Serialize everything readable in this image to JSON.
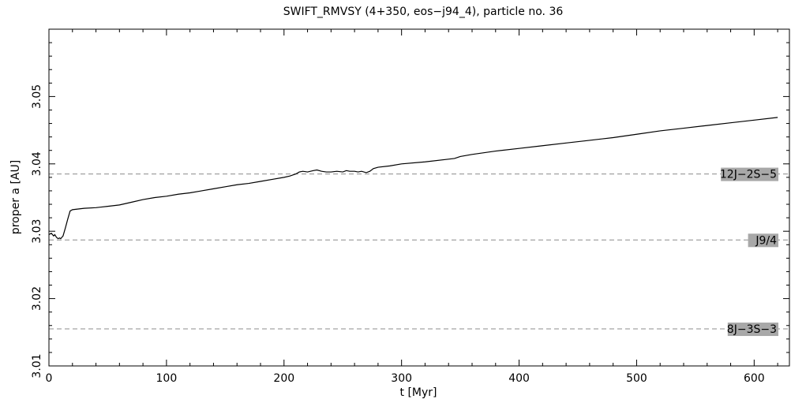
{
  "chart_data": {
    "type": "line",
    "title": "SWIFT_RMVSY (4+350, eos−j94_4), particle no. 36",
    "xlabel": "t [Myr]",
    "ylabel": "proper a [AU]",
    "xlim": [
      0,
      630
    ],
    "ylim": [
      3.01,
      3.06
    ],
    "xticks": [
      0,
      100,
      200,
      300,
      400,
      500,
      600
    ],
    "yticks": [
      3.01,
      3.02,
      3.03,
      3.04,
      3.05
    ],
    "xtick_labels": [
      "0",
      "100",
      "200",
      "300",
      "400",
      "500",
      "600"
    ],
    "ytick_labels": [
      "3.01",
      "3.02",
      "3.03",
      "3.04",
      "3.05"
    ],
    "grid": false,
    "resonances": [
      {
        "label": "12J−2S−5",
        "a": 3.0385
      },
      {
        "label": "J9/4",
        "a": 3.0287
      },
      {
        "label": "8J−3S−3",
        "a": 3.0155
      }
    ],
    "series": [
      {
        "x": [
          0,
          2,
          4,
          5,
          6,
          7,
          8,
          9,
          10,
          11,
          12,
          14,
          16,
          18,
          20,
          30,
          40,
          50,
          60,
          70,
          80,
          90,
          100,
          110,
          120,
          130,
          140,
          150,
          160,
          170,
          180,
          190,
          200,
          205,
          210,
          213,
          216,
          220,
          225,
          228,
          232,
          236,
          240,
          245,
          250,
          253,
          256,
          260,
          263,
          266,
          270,
          273,
          276,
          278,
          280,
          290,
          300,
          320,
          340,
          345,
          350,
          360,
          380,
          400,
          420,
          440,
          460,
          480,
          500,
          520,
          540,
          560,
          580,
          600,
          620
        ],
        "y": [
          3.0295,
          3.0297,
          3.0293,
          3.0295,
          3.0292,
          3.029,
          3.0289,
          3.029,
          3.0289,
          3.0291,
          3.0293,
          3.0305,
          3.0318,
          3.033,
          3.0332,
          3.0334,
          3.0335,
          3.0337,
          3.0339,
          3.0343,
          3.0347,
          3.035,
          3.0352,
          3.0355,
          3.0357,
          3.036,
          3.0363,
          3.0366,
          3.0369,
          3.0371,
          3.0374,
          3.0377,
          3.038,
          3.0382,
          3.0385,
          3.0388,
          3.0389,
          3.0388,
          3.039,
          3.0391,
          3.0389,
          3.0388,
          3.0388,
          3.0389,
          3.0388,
          3.039,
          3.0389,
          3.0389,
          3.0388,
          3.0389,
          3.0387,
          3.0389,
          3.0393,
          3.0394,
          3.0395,
          3.0397,
          3.04,
          3.0403,
          3.0407,
          3.0408,
          3.0411,
          3.0414,
          3.0419,
          3.0423,
          3.0427,
          3.0431,
          3.0435,
          3.0439,
          3.0444,
          3.0449,
          3.0453,
          3.0457,
          3.0461,
          3.0465,
          3.0469
        ]
      }
    ]
  },
  "colors": {
    "line": "#000000",
    "resonance_line": "#8c8c8c",
    "label_box": "#a8a8a8"
  }
}
